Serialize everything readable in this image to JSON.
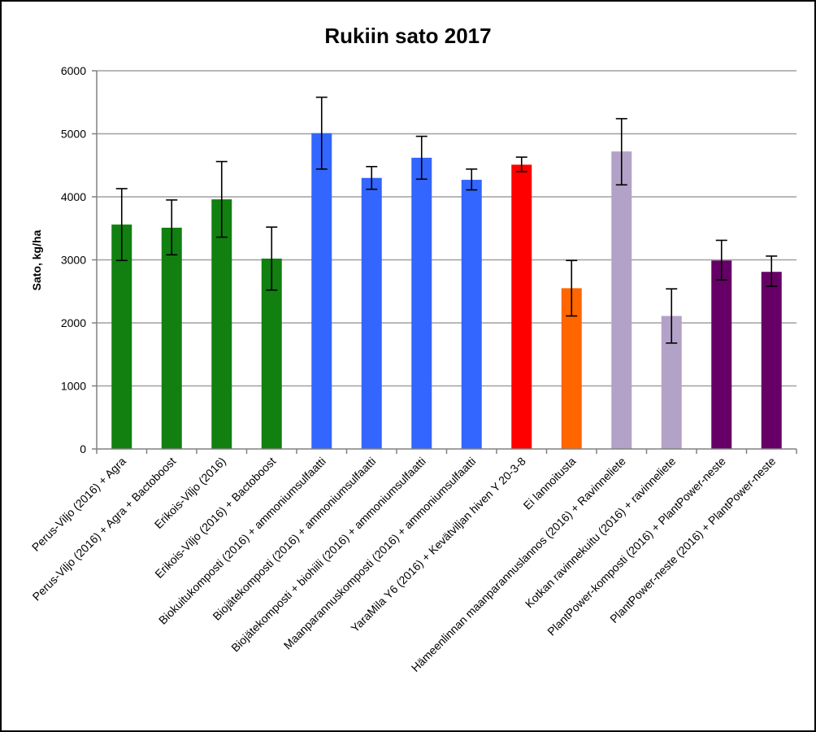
{
  "chart_data": {
    "type": "bar",
    "title": "Rukiin sato 2017",
    "xlabel": "",
    "ylabel": "Sato, kg/ha",
    "ylim": [
      0,
      6000
    ],
    "yticks": [
      0,
      1000,
      2000,
      3000,
      4000,
      5000,
      6000
    ],
    "grid": true,
    "legend": "none",
    "categories": [
      "Perus-Viljo (2016) + Agra",
      "Perus-Viljo (2016) + Agra + Bactoboost",
      "Erikois-Viljo (2016)",
      "Erikois-Viljo (2016) + Bactoboost",
      "Biokuitukomposti (2016) + ammoniumsulfaatti",
      "Biojätekomposti (2016) + ammoniumsulfaatti",
      "Biojätekomposti + biohiili (2016) + ammoniumsulfaatti",
      "Maanparannuskomposti (2016) + ammoniumsulfaatti",
      "YaraMila Y6 (2016) + Kevätviljan hiven Y 20-3-8",
      "Ei lannoitusta",
      "Hämeenlinnan maanparannuslannos (2016) + Ravinneliete",
      "Kotkan ravinnekuitu (2016) + ravinneliete",
      "PlantPower-komposti (2016) + PlantPower-neste",
      "PlantPower-neste (2016) + PlantPower-neste"
    ],
    "values": [
      3560,
      3510,
      3960,
      3020,
      5010,
      4300,
      4620,
      4270,
      4510,
      2550,
      4720,
      2110,
      2990,
      2810
    ],
    "error_low": [
      2990,
      3080,
      3360,
      2520,
      4440,
      4120,
      4280,
      4110,
      4400,
      2110,
      4190,
      1680,
      2680,
      2580
    ],
    "error_high": [
      4130,
      3950,
      4560,
      3520,
      5580,
      4480,
      4960,
      4440,
      4630,
      2990,
      5240,
      2540,
      3310,
      3060
    ],
    "colors": [
      "#118011",
      "#118011",
      "#118011",
      "#118011",
      "#3366ff",
      "#3366ff",
      "#3366ff",
      "#3366ff",
      "#ff0000",
      "#ff6600",
      "#b3a2c7",
      "#b3a2c7",
      "#660066",
      "#660066"
    ],
    "gridline_color": "#a0a0a0",
    "axis_color": "#808080"
  }
}
